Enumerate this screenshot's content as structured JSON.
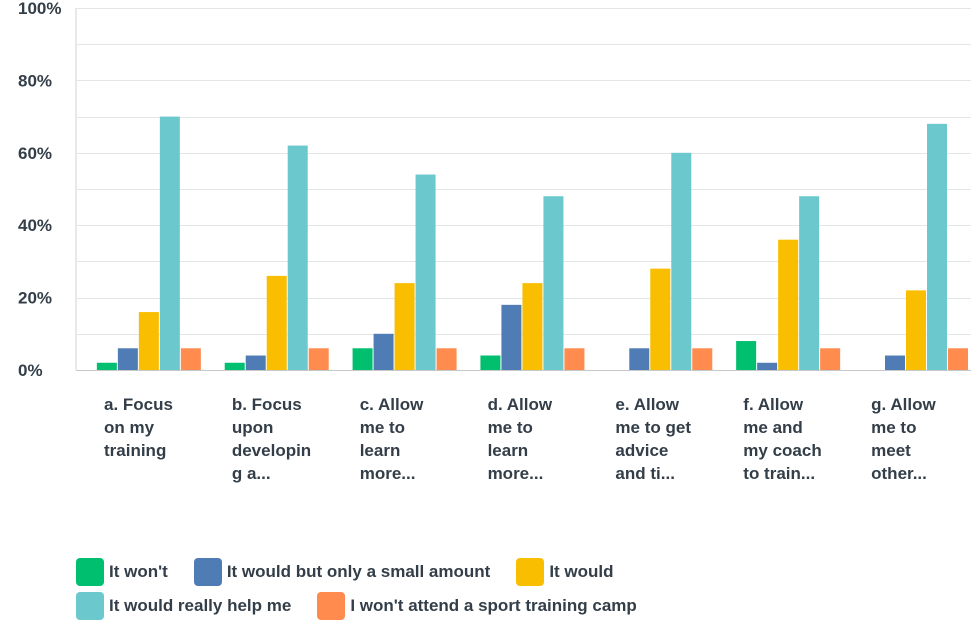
{
  "chart_data": {
    "type": "bar",
    "categories": [
      "a. Focus on my training",
      "b. Focus upon developin g a...",
      "c. Allow me to learn more...",
      "d. Allow me to learn more...",
      "e. Allow me to get advice and ti...",
      "f. Allow me and my coach to train...",
      "g. Allow me to meet other..."
    ],
    "series": [
      {
        "name": "It won't",
        "color": "#00bf6f",
        "values": [
          2,
          2,
          6,
          4,
          0,
          8,
          0
        ]
      },
      {
        "name": "It would but only a small amount",
        "color": "#507cb6",
        "values": [
          6,
          4,
          10,
          18,
          6,
          2,
          4
        ]
      },
      {
        "name": "It would",
        "color": "#f9be00",
        "values": [
          16,
          26,
          24,
          24,
          28,
          36,
          22
        ]
      },
      {
        "name": "It would really help me",
        "color": "#6bc8cd",
        "values": [
          70,
          62,
          54,
          48,
          60,
          48,
          68
        ]
      },
      {
        "name": "I won't attend a sport training camp",
        "color": "#ff8b4f",
        "values": [
          6,
          6,
          6,
          6,
          6,
          6,
          6
        ]
      }
    ],
    "ylim": [
      0,
      100
    ],
    "yticks": [
      "0%",
      "20%",
      "40%",
      "60%",
      "80%",
      "100%"
    ],
    "ytick_values": [
      0,
      20,
      40,
      60,
      80,
      100
    ],
    "grid": true,
    "legend_position": "bottom"
  }
}
